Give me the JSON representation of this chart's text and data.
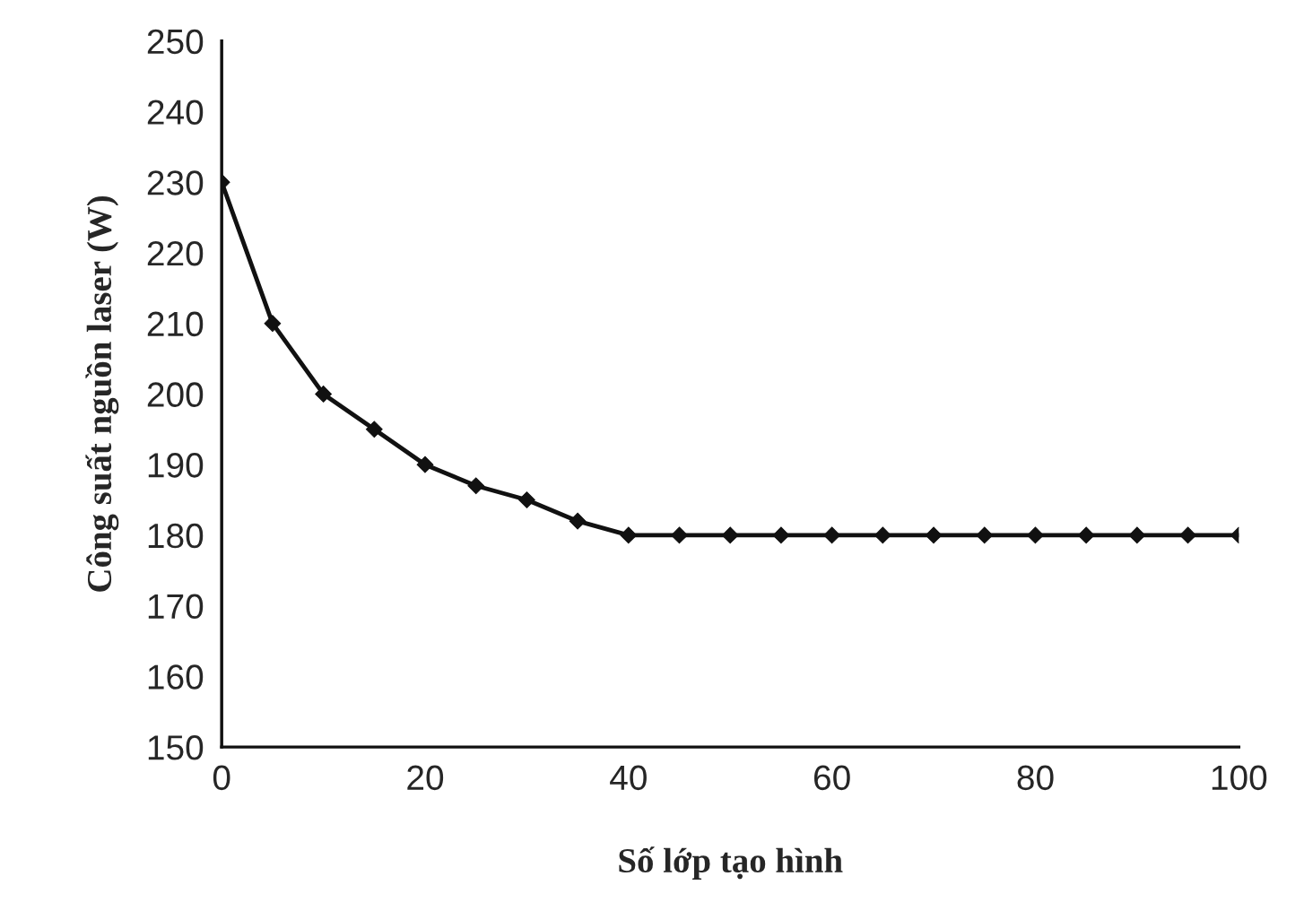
{
  "chart_data": {
    "type": "line",
    "xlabel": "Số lớp tạo hình",
    "ylabel": "Công suất nguồn laser (W)",
    "x": [
      0,
      5,
      10,
      15,
      20,
      25,
      30,
      35,
      40,
      45,
      50,
      55,
      60,
      65,
      70,
      75,
      80,
      85,
      90,
      95,
      100
    ],
    "series": [
      {
        "color": "#111111",
        "values": [
          230,
          210,
          200,
          195,
          190,
          187,
          185,
          182,
          180,
          180,
          180,
          180,
          180,
          180,
          180,
          180,
          180,
          180,
          180,
          180,
          180
        ]
      }
    ],
    "xlim": [
      0,
      100
    ],
    "xticks": [
      0,
      20,
      40,
      60,
      80,
      100
    ],
    "ylim": [
      150,
      250
    ],
    "yticks": [
      150,
      160,
      170,
      180,
      190,
      200,
      210,
      220,
      230,
      240,
      250
    ],
    "grid": false,
    "marker": "diamond",
    "line_style": "solid"
  }
}
